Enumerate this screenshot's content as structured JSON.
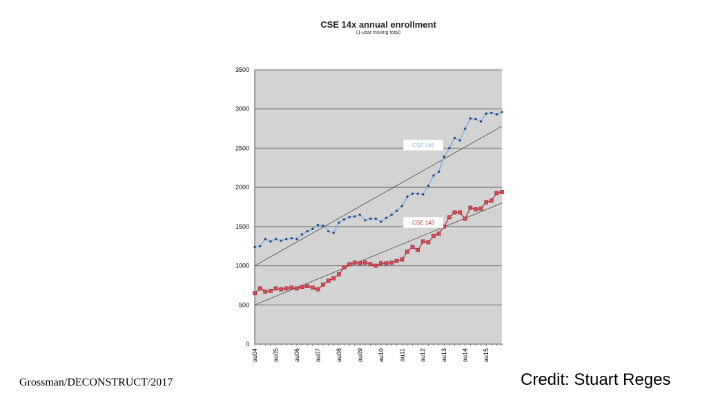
{
  "footer": {
    "left": "Grossman/DECONSTRUCT/2017",
    "right": "Credit: Stuart Reges"
  },
  "chart_data": {
    "type": "line",
    "title": "CSE 14x annual enrollment",
    "subtitle": "(1-year moving total)",
    "xlabel": "",
    "ylabel": "",
    "ylim": [
      0,
      3500
    ],
    "yticks": [
      0,
      500,
      1000,
      1500,
      2000,
      2500,
      3000,
      3500
    ],
    "grid": true,
    "plot_background": "#d3d3d3",
    "x_tick_labels": [
      "au04",
      "au05",
      "au06",
      "au07",
      "au08",
      "au09",
      "au10",
      "au11",
      "au12",
      "au13",
      "au14",
      "au15"
    ],
    "x_tick_index": [
      0,
      4,
      8,
      12,
      16,
      20,
      24,
      28,
      32,
      36,
      40,
      44
    ],
    "series": [
      {
        "name": "CSE 142",
        "color": "#7fb2e8",
        "marker_color": "#1f3f73",
        "values": [
          1240,
          1250,
          1340,
          1310,
          1340,
          1320,
          1340,
          1350,
          1340,
          1400,
          1440,
          1470,
          1520,
          1510,
          1440,
          1420,
          1550,
          1590,
          1620,
          1630,
          1650,
          1580,
          1600,
          1600,
          1560,
          1610,
          1650,
          1700,
          1760,
          1880,
          1920,
          1920,
          1910,
          2020,
          2150,
          2200,
          2390,
          2500,
          2630,
          2600,
          2750,
          2880,
          2870,
          2840,
          2940,
          2950,
          2930,
          2960
        ]
      },
      {
        "name": "CSE 143",
        "color": "#b7323f",
        "marker_color": "#d94a52",
        "values": [
          650,
          710,
          670,
          680,
          710,
          700,
          710,
          720,
          710,
          730,
          740,
          720,
          700,
          760,
          810,
          840,
          890,
          980,
          1020,
          1040,
          1030,
          1040,
          1020,
          1000,
          1030,
          1030,
          1040,
          1060,
          1080,
          1180,
          1240,
          1200,
          1310,
          1300,
          1380,
          1410,
          1500,
          1620,
          1680,
          1680,
          1600,
          1740,
          1720,
          1730,
          1810,
          1830,
          1930,
          1940
        ]
      }
    ],
    "trendlines": [
      {
        "from": [
          0,
          1000
        ],
        "to": [
          47,
          2780
        ]
      },
      {
        "from": [
          0,
          500
        ],
        "to": [
          47,
          1800
        ]
      }
    ]
  }
}
